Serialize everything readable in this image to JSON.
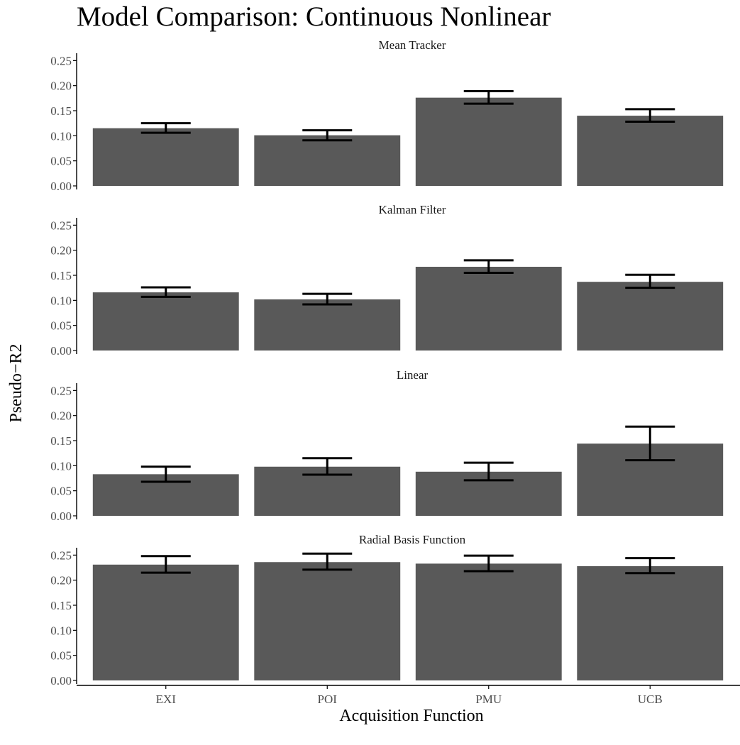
{
  "chart_data": {
    "type": "bar",
    "title": "Model Comparison: Continuous Nonlinear",
    "xlabel": "Acquisition Function",
    "ylabel": "Pseudo−R2",
    "categories": [
      "EXI",
      "POI",
      "PMU",
      "UCB"
    ],
    "ylim": [
      0,
      0.25
    ],
    "yticks": [
      "0.00",
      "0.05",
      "0.10",
      "0.15",
      "0.20",
      "0.25"
    ],
    "grid": false,
    "bar_color": "#595959",
    "panels": [
      {
        "name": "Mean Tracker",
        "values": [
          0.115,
          0.101,
          0.176,
          0.14
        ],
        "err_low": [
          0.106,
          0.091,
          0.164,
          0.128
        ],
        "err_high": [
          0.125,
          0.111,
          0.189,
          0.153
        ]
      },
      {
        "name": "Kalman Filter",
        "values": [
          0.116,
          0.102,
          0.167,
          0.137
        ],
        "err_low": [
          0.107,
          0.092,
          0.155,
          0.125
        ],
        "err_high": [
          0.126,
          0.113,
          0.18,
          0.151
        ]
      },
      {
        "name": "Linear",
        "values": [
          0.083,
          0.098,
          0.088,
          0.144
        ],
        "err_low": [
          0.068,
          0.082,
          0.071,
          0.111
        ],
        "err_high": [
          0.098,
          0.115,
          0.106,
          0.178
        ]
      },
      {
        "name": "Radial Basis Function",
        "values": [
          0.231,
          0.236,
          0.233,
          0.228
        ],
        "err_low": [
          0.215,
          0.221,
          0.218,
          0.214
        ],
        "err_high": [
          0.248,
          0.253,
          0.249,
          0.244
        ]
      }
    ]
  }
}
